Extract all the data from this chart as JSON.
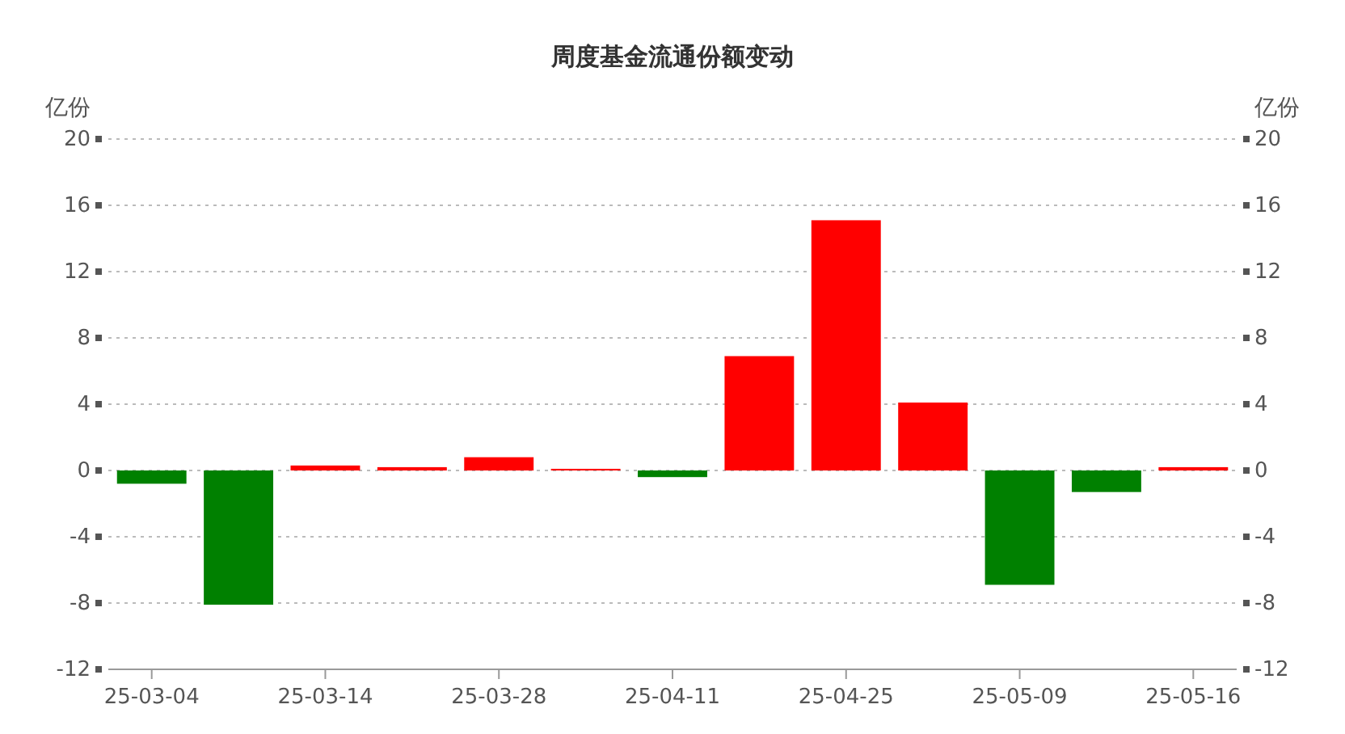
{
  "chart_data": {
    "type": "bar",
    "title": "周度基金流通份额变动",
    "ylabel": "亿份",
    "y2label": "亿份",
    "categories": [
      "25-03-04",
      null,
      "25-03-14",
      null,
      "25-03-28",
      null,
      "25-04-11",
      null,
      "25-04-25",
      null,
      "25-05-09",
      null,
      "25-05-16"
    ],
    "values": [
      -0.8,
      -8.1,
      0.3,
      0.2,
      0.8,
      0.1,
      -0.4,
      6.9,
      15.1,
      4.1,
      -6.9,
      -1.3,
      0.2
    ],
    "colors": [
      "#008000",
      "#008000",
      "#ff0000",
      "#ff0000",
      "#ff0000",
      "#ff0000",
      "#008000",
      "#ff0000",
      "#ff0000",
      "#ff0000",
      "#008000",
      "#008000",
      "#ff0000"
    ],
    "ylim": [
      -12,
      20
    ],
    "yticks": [
      -12,
      -8,
      -4,
      0,
      4,
      8,
      12,
      16,
      20
    ],
    "y2lim": [
      -12,
      20
    ],
    "y2ticks": [
      -12,
      -8,
      -4,
      0,
      4,
      8,
      12,
      16,
      20
    ],
    "grid": "y"
  }
}
